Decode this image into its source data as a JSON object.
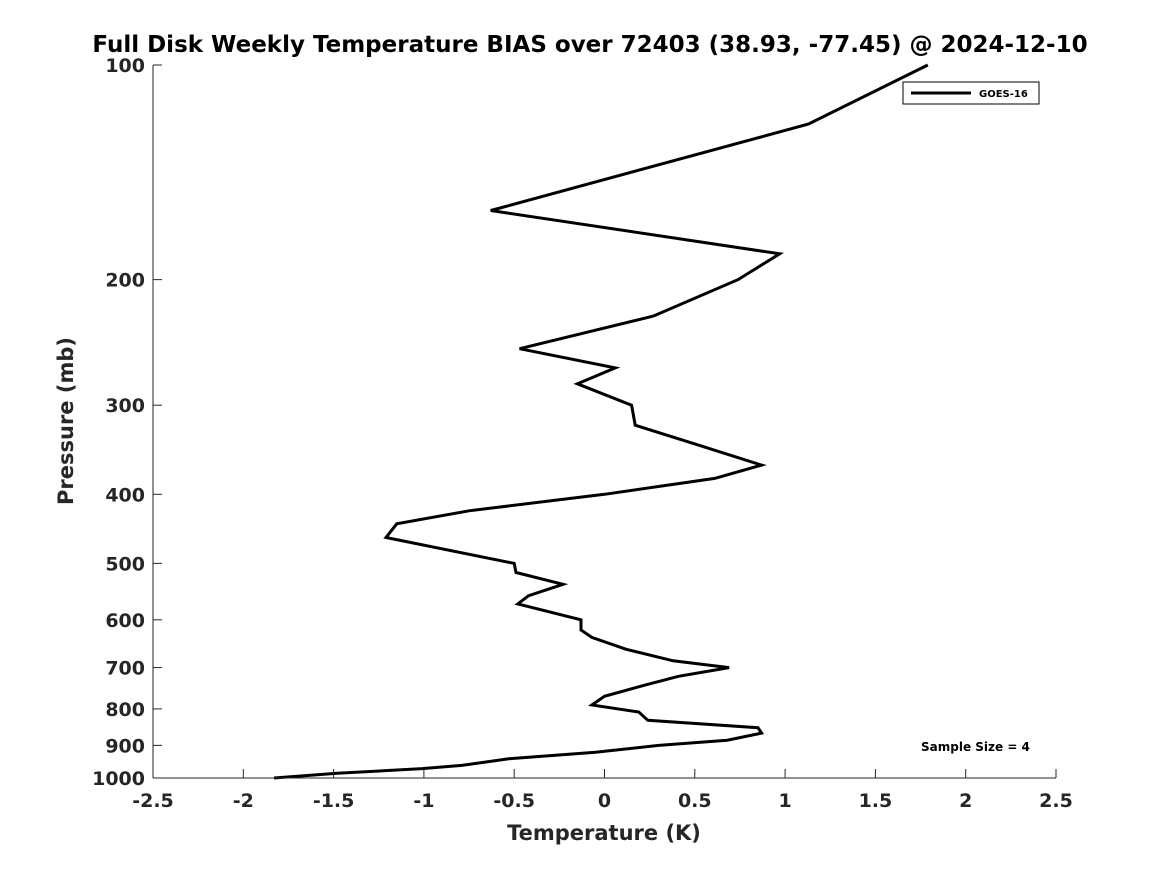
{
  "chart_data": {
    "type": "line",
    "title": "Full Disk Weekly Temperature BIAS over 72403 (38.93, -77.45) @ 2024-12-10",
    "xlabel": "Temperature (K)",
    "ylabel": "Pressure (mb)",
    "xlim": [
      -2.5,
      2.5
    ],
    "ylim": [
      1000,
      100
    ],
    "y_scale": "log",
    "x_ticks": [
      "-2.5",
      "-2",
      "-1.5",
      "-1",
      "-0.5",
      "0",
      "0.5",
      "1",
      "1.5",
      "2",
      "2.5"
    ],
    "x_tick_values": [
      -2.5,
      -2,
      -1.5,
      -1,
      -0.5,
      0,
      0.5,
      1,
      1.5,
      2,
      2.5
    ],
    "y_ticks": [
      "100",
      "200",
      "300",
      "400",
      "500",
      "600",
      "700",
      "800",
      "900",
      "1000"
    ],
    "y_tick_values": [
      100,
      200,
      300,
      400,
      500,
      600,
      700,
      800,
      900,
      1000
    ],
    "grid": false,
    "legend_position": "top-right",
    "series": [
      {
        "name": "GOES-16",
        "color": "#000000",
        "points": [
          {
            "x": 1.79,
            "p": 100
          },
          {
            "x": 1.13,
            "p": 121
          },
          {
            "x": -0.63,
            "p": 160
          },
          {
            "x": 0.97,
            "p": 184
          },
          {
            "x": 0.74,
            "p": 200
          },
          {
            "x": 0.27,
            "p": 225
          },
          {
            "x": -0.47,
            "p": 250
          },
          {
            "x": 0.06,
            "p": 266
          },
          {
            "x": -0.15,
            "p": 280
          },
          {
            "x": 0.15,
            "p": 300
          },
          {
            "x": 0.17,
            "p": 320
          },
          {
            "x": 0.5,
            "p": 340
          },
          {
            "x": 0.87,
            "p": 364
          },
          {
            "x": 0.61,
            "p": 380
          },
          {
            "x": 0.0,
            "p": 400
          },
          {
            "x": -0.75,
            "p": 422
          },
          {
            "x": -1.15,
            "p": 440
          },
          {
            "x": -1.21,
            "p": 460
          },
          {
            "x": -0.5,
            "p": 500
          },
          {
            "x": -0.49,
            "p": 515
          },
          {
            "x": -0.23,
            "p": 535
          },
          {
            "x": -0.42,
            "p": 555
          },
          {
            "x": -0.48,
            "p": 570
          },
          {
            "x": -0.13,
            "p": 600
          },
          {
            "x": -0.13,
            "p": 620
          },
          {
            "x": -0.07,
            "p": 635
          },
          {
            "x": 0.12,
            "p": 660
          },
          {
            "x": 0.38,
            "p": 685
          },
          {
            "x": 0.69,
            "p": 700
          },
          {
            "x": 0.41,
            "p": 720
          },
          {
            "x": 0.23,
            "p": 740
          },
          {
            "x": 0.0,
            "p": 768
          },
          {
            "x": -0.07,
            "p": 790
          },
          {
            "x": 0.19,
            "p": 808
          },
          {
            "x": 0.24,
            "p": 830
          },
          {
            "x": 0.85,
            "p": 850
          },
          {
            "x": 0.87,
            "p": 865
          },
          {
            "x": 0.68,
            "p": 885
          },
          {
            "x": 0.3,
            "p": 900
          },
          {
            "x": -0.05,
            "p": 920
          },
          {
            "x": -0.53,
            "p": 940
          },
          {
            "x": -0.79,
            "p": 960
          },
          {
            "x": -1.01,
            "p": 970
          },
          {
            "x": -1.48,
            "p": 985
          },
          {
            "x": -1.83,
            "p": 1000
          }
        ]
      }
    ],
    "annotation": "Sample Size = 4"
  }
}
